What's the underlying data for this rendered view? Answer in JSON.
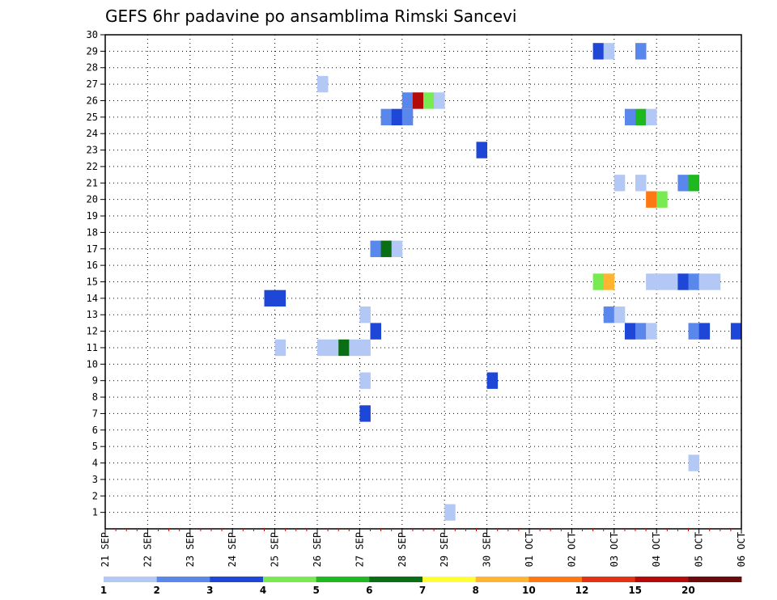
{
  "chart_data": {
    "type": "heatmap",
    "title": "GEFS 6hr padavine po ansamblima Rimski Sancevi",
    "x_tick_labels": [
      "21 SEP",
      "22 SEP",
      "23 SEP",
      "24 SEP",
      "25 SEP",
      "26 SEP",
      "27 SEP",
      "28 SEP",
      "29 SEP",
      "30 SEP",
      "01 OCT",
      "02 OCT",
      "03 OCT",
      "04 OCT",
      "05 OCT",
      "06 OCT"
    ],
    "x_unit": "days since 21 SEP 00z",
    "x_range": [
      0,
      15
    ],
    "y_range": [
      0,
      30
    ],
    "y_ticks": [
      1,
      2,
      3,
      4,
      5,
      6,
      7,
      8,
      9,
      10,
      11,
      12,
      13,
      14,
      15,
      16,
      17,
      18,
      19,
      20,
      21,
      22,
      23,
      24,
      25,
      26,
      27,
      28,
      29,
      30
    ],
    "step_days": 0.25,
    "grid": true,
    "legend_position": "bottom",
    "colorbar": {
      "labels": [
        "1",
        "2",
        "3",
        "4",
        "5",
        "6",
        "7",
        "8",
        "10",
        "12",
        "15",
        "20"
      ],
      "colors": [
        "#b4c8f5",
        "#5a87ec",
        "#1e46d7",
        "#78eb50",
        "#1eb91e",
        "#0a6e14",
        "#ffff32",
        "#ffb432",
        "#ff7814",
        "#e63214",
        "#b40a0a",
        "#6e0a0a"
      ]
    },
    "cells": [
      {
        "t": 11.5,
        "m": 29,
        "c": 2
      },
      {
        "t": 11.75,
        "m": 29,
        "c": 0
      },
      {
        "t": 12.5,
        "m": 29,
        "c": 1
      },
      {
        "t": 5.0,
        "m": 27,
        "c": 0
      },
      {
        "t": 7.0,
        "m": 26,
        "c": 1
      },
      {
        "t": 7.25,
        "m": 26,
        "c": 10
      },
      {
        "t": 7.5,
        "m": 26,
        "c": 3
      },
      {
        "t": 7.75,
        "m": 26,
        "c": 0
      },
      {
        "t": 6.5,
        "m": 25,
        "c": 1
      },
      {
        "t": 6.75,
        "m": 25,
        "c": 2
      },
      {
        "t": 7.0,
        "m": 25,
        "c": 1
      },
      {
        "t": 12.25,
        "m": 25,
        "c": 1
      },
      {
        "t": 12.5,
        "m": 25,
        "c": 4
      },
      {
        "t": 12.75,
        "m": 25,
        "c": 0
      },
      {
        "t": 8.75,
        "m": 23,
        "c": 2
      },
      {
        "t": 12.0,
        "m": 21,
        "c": 0
      },
      {
        "t": 12.5,
        "m": 21,
        "c": 0
      },
      {
        "t": 13.5,
        "m": 21,
        "c": 1
      },
      {
        "t": 13.75,
        "m": 21,
        "c": 4
      },
      {
        "t": 12.75,
        "m": 20,
        "c": 8
      },
      {
        "t": 13.0,
        "m": 20,
        "c": 3
      },
      {
        "t": 6.25,
        "m": 17,
        "c": 1
      },
      {
        "t": 6.5,
        "m": 17,
        "c": 5
      },
      {
        "t": 6.75,
        "m": 17,
        "c": 0
      },
      {
        "t": 11.5,
        "m": 15,
        "c": 3
      },
      {
        "t": 11.75,
        "m": 15,
        "c": 7
      },
      {
        "t": 12.75,
        "m": 15,
        "c": 0
      },
      {
        "t": 13.0,
        "m": 15,
        "c": 0
      },
      {
        "t": 13.25,
        "m": 15,
        "c": 0
      },
      {
        "t": 13.5,
        "m": 15,
        "c": 2
      },
      {
        "t": 13.75,
        "m": 15,
        "c": 1
      },
      {
        "t": 14.0,
        "m": 15,
        "c": 0
      },
      {
        "t": 14.25,
        "m": 15,
        "c": 0
      },
      {
        "t": 3.75,
        "m": 14,
        "c": 2
      },
      {
        "t": 4.0,
        "m": 14,
        "c": 2
      },
      {
        "t": 6.0,
        "m": 13,
        "c": 0
      },
      {
        "t": 11.75,
        "m": 13,
        "c": 1
      },
      {
        "t": 12.0,
        "m": 13,
        "c": 0
      },
      {
        "t": 6.25,
        "m": 12,
        "c": 2
      },
      {
        "t": 12.25,
        "m": 12,
        "c": 2
      },
      {
        "t": 12.5,
        "m": 12,
        "c": 1
      },
      {
        "t": 12.75,
        "m": 12,
        "c": 0
      },
      {
        "t": 13.75,
        "m": 12,
        "c": 1
      },
      {
        "t": 14.0,
        "m": 12,
        "c": 2
      },
      {
        "t": 14.75,
        "m": 12,
        "c": 2
      },
      {
        "t": 4.0,
        "m": 11,
        "c": 0
      },
      {
        "t": 5.0,
        "m": 11,
        "c": 0
      },
      {
        "t": 5.25,
        "m": 11,
        "c": 0
      },
      {
        "t": 5.5,
        "m": 11,
        "c": 5
      },
      {
        "t": 5.75,
        "m": 11,
        "c": 0
      },
      {
        "t": 6.0,
        "m": 11,
        "c": 0
      },
      {
        "t": 6.0,
        "m": 9,
        "c": 0
      },
      {
        "t": 9.0,
        "m": 9,
        "c": 2
      },
      {
        "t": 6.0,
        "m": 7,
        "c": 2
      },
      {
        "t": 13.75,
        "m": 4,
        "c": 0
      },
      {
        "t": 8.0,
        "m": 1,
        "c": 0
      }
    ]
  }
}
